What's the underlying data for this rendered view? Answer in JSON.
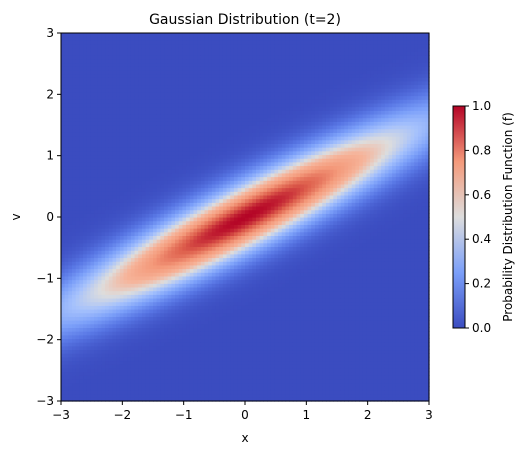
{
  "chart_data": {
    "type": "heatmap",
    "title": "Gaussian Distribution (t=2)",
    "xlabel": "x",
    "ylabel": "v",
    "xlim": [
      -3,
      3
    ],
    "ylim": [
      -3,
      3
    ],
    "x_ticks": [
      "−3",
      "−2",
      "−1",
      "0",
      "1",
      "2",
      "3"
    ],
    "y_ticks": [
      "−3",
      "−2",
      "−1",
      "0",
      "1",
      "2",
      "3"
    ],
    "grid_resolution": [
      100,
      100
    ],
    "function": {
      "form": "f(x, v) = exp(-(v - x/t)^2 / (2*sigma^2)) * exp(-x^2 / (2*t^2))",
      "t": 2,
      "sigma": 0.4
    },
    "colormap": "coolwarm",
    "colorbar": {
      "label": "Probability Distribution Function (f)",
      "range": [
        0,
        1
      ],
      "ticks": [
        "0.0",
        "0.2",
        "0.4",
        "0.6",
        "0.8",
        "1.0"
      ]
    },
    "grid": false,
    "legend": "none"
  }
}
